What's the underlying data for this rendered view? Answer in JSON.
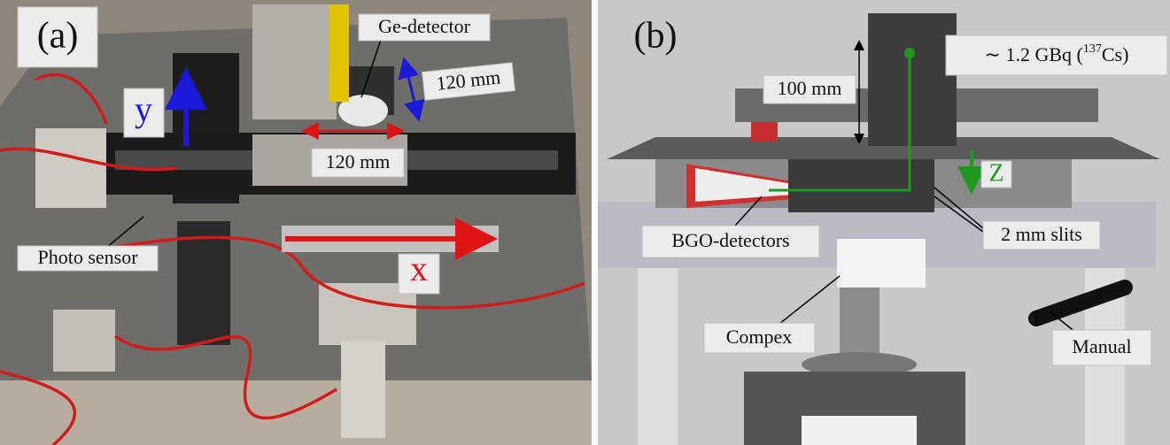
{
  "panel_a": {
    "label": "(a)",
    "ge_detector": "Ge-detector",
    "y_travel": "120 mm",
    "y_axis": "y",
    "x_travel": "120 mm",
    "x_axis": "x",
    "photo_sensor": "Photo sensor"
  },
  "panel_b": {
    "label": "(b)",
    "source": {
      "prefix": "∼ 1.2 GBq (",
      "isotope_mass": "137",
      "suffix": "Cs)"
    },
    "height": "100 mm",
    "z_axis": "Z",
    "bgo": "BGO-detectors",
    "slits": "2 mm slits",
    "compex": "Compex",
    "manual": "Manual"
  }
}
